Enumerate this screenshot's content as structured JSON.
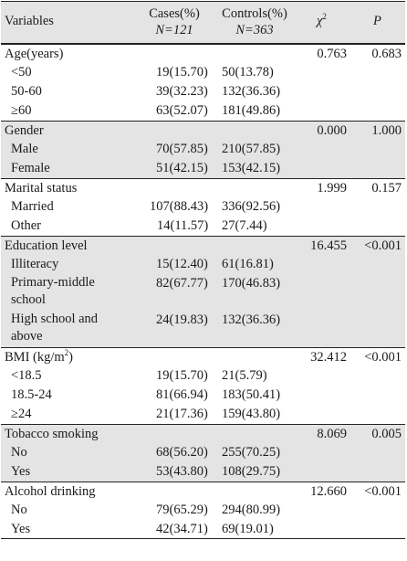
{
  "header": {
    "variables": "Variables",
    "cases_label": "Cases(%)",
    "cases_n": "N=121",
    "controls_label": "Controls(%)",
    "controls_n": "N=363",
    "chi": "χ",
    "chi_sup": "2",
    "p": "P"
  },
  "groups": [
    {
      "name": "Age(years)",
      "chi": "0.763",
      "p": "0.683",
      "rows": [
        {
          "label": "<50",
          "cases": "19(15.70)",
          "controls": "50(13.78)"
        },
        {
          "label": "50-60",
          "cases": "39(32.23)",
          "controls": "132(36.36)"
        },
        {
          "label": "≥60",
          "cases": "63(52.07)",
          "controls": "181(49.86)"
        }
      ]
    },
    {
      "name": "Gender",
      "chi": "0.000",
      "p": "1.000",
      "rows": [
        {
          "label": "Male",
          "cases": "70(57.85)",
          "controls": "210(57.85)"
        },
        {
          "label": "Female",
          "cases": "51(42.15)",
          "controls": "153(42.15)"
        }
      ]
    },
    {
      "name": "Marital status",
      "chi": "1.999",
      "p": "0.157",
      "rows": [
        {
          "label": "Married",
          "cases": "107(88.43)",
          "controls": "336(92.56)"
        },
        {
          "label": "Other",
          "cases": "14(11.57)",
          "controls": "27(7.44)"
        }
      ]
    },
    {
      "name": "Education level",
      "chi": "16.455",
      "p": "<0.001",
      "rows": [
        {
          "label": "Illiteracy",
          "cases": "15(12.40)",
          "controls": "61(16.81)"
        },
        {
          "label": "Primary-middle school",
          "cases": "82(67.77)",
          "controls": "170(46.83)"
        },
        {
          "label": "High school and above",
          "cases": "24(19.83)",
          "controls": "132(36.36)"
        }
      ]
    },
    {
      "name": "BMI (kg/m",
      "name_sup": "2",
      "name_tail": ")",
      "chi": "32.412",
      "p": "<0.001",
      "rows": [
        {
          "label": "<18.5",
          "cases": "19(15.70)",
          "controls": "21(5.79)"
        },
        {
          "label": "18.5-24",
          "cases": "81(66.94)",
          "controls": "183(50.41)"
        },
        {
          "label": "≥24",
          "cases": "21(17.36)",
          "controls": "159(43.80)"
        }
      ]
    },
    {
      "name": "Tobacco smoking",
      "chi": "8.069",
      "p": "0.005",
      "rows": [
        {
          "label": "No",
          "cases": "68(56.20)",
          "controls": "255(70.25)"
        },
        {
          "label": "Yes",
          "cases": "53(43.80)",
          "controls": "108(29.75)"
        }
      ]
    },
    {
      "name": "Alcohol drinking",
      "chi": "12.660",
      "p": "<0.001",
      "rows": [
        {
          "label": "No",
          "cases": "79(65.29)",
          "controls": "294(80.99)"
        },
        {
          "label": "Yes",
          "cases": "42(34.71)",
          "controls": "69(19.01)"
        }
      ]
    }
  ]
}
